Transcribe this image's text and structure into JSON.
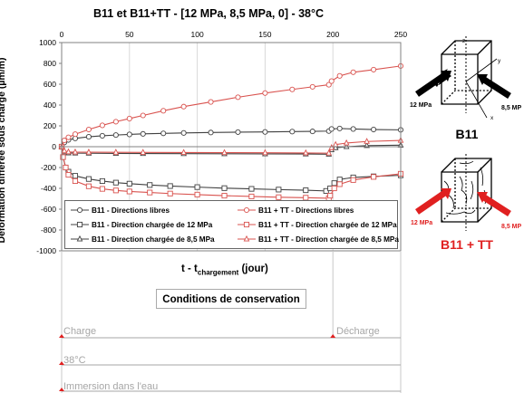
{
  "chart_data": {
    "type": "line",
    "title": "B11 et B11+TT - [12 MPa, 8,5 MPa, 0] - 38°C",
    "xlabel_main": "t - t",
    "xlabel_sub": "chargement",
    "xlabel_unit": " (jour)",
    "ylabel": "Déformation différée sous charge (µm/m)",
    "xlim": [
      0,
      250
    ],
    "ylim": [
      -1000,
      1000
    ],
    "x_ticks": [
      "0",
      "50",
      "100",
      "150",
      "200",
      "250"
    ],
    "y_ticks": [
      "1000",
      "800",
      "600",
      "400",
      "200",
      "0",
      "-200",
      "-400",
      "-600",
      "-800",
      "-1000"
    ],
    "grid": "vertical",
    "legend_position": "bottom-inside",
    "series": [
      {
        "name": "B11 - Directions libres",
        "color": "#404040",
        "marker": "circle",
        "points": [
          [
            0,
            0
          ],
          [
            2,
            40
          ],
          [
            5,
            65
          ],
          [
            10,
            80
          ],
          [
            20,
            95
          ],
          [
            30,
            105
          ],
          [
            40,
            112
          ],
          [
            50,
            118
          ],
          [
            60,
            123
          ],
          [
            75,
            128
          ],
          [
            90,
            132
          ],
          [
            110,
            136
          ],
          [
            130,
            140
          ],
          [
            150,
            142
          ],
          [
            170,
            145
          ],
          [
            185,
            147
          ],
          [
            197,
            150
          ],
          [
            199,
            170
          ],
          [
            205,
            175
          ],
          [
            215,
            170
          ],
          [
            230,
            165
          ],
          [
            250,
            162
          ]
        ]
      },
      {
        "name": "B11 - Direction chargée de 12 MPa",
        "color": "#404040",
        "marker": "square",
        "points": [
          [
            0,
            0
          ],
          [
            1,
            -100
          ],
          [
            3,
            -200
          ],
          [
            5,
            -240
          ],
          [
            10,
            -280
          ],
          [
            20,
            -310
          ],
          [
            30,
            -330
          ],
          [
            40,
            -345
          ],
          [
            50,
            -355
          ],
          [
            65,
            -368
          ],
          [
            80,
            -378
          ],
          [
            100,
            -388
          ],
          [
            120,
            -398
          ],
          [
            140,
            -405
          ],
          [
            160,
            -412
          ],
          [
            180,
            -418
          ],
          [
            195,
            -425
          ],
          [
            198,
            -400
          ],
          [
            201,
            -350
          ],
          [
            205,
            -315
          ],
          [
            215,
            -295
          ],
          [
            230,
            -285
          ],
          [
            250,
            -275
          ]
        ]
      },
      {
        "name": "B11 - Direction chargée de 8,5 MPa",
        "color": "#404040",
        "marker": "triangle",
        "points": [
          [
            0,
            0
          ],
          [
            2,
            -50
          ],
          [
            5,
            -60
          ],
          [
            10,
            -62
          ],
          [
            20,
            -63
          ],
          [
            40,
            -65
          ],
          [
            60,
            -66
          ],
          [
            90,
            -67
          ],
          [
            120,
            -68
          ],
          [
            150,
            -69
          ],
          [
            180,
            -70
          ],
          [
            197,
            -72
          ],
          [
            199,
            -30
          ],
          [
            202,
            -10
          ],
          [
            210,
            0
          ],
          [
            225,
            10
          ],
          [
            250,
            15
          ]
        ]
      },
      {
        "name": "B11 + TT - Directions libres",
        "color": "#d9534f",
        "marker": "circle",
        "points": [
          [
            0,
            0
          ],
          [
            2,
            60
          ],
          [
            5,
            90
          ],
          [
            10,
            120
          ],
          [
            20,
            165
          ],
          [
            30,
            205
          ],
          [
            40,
            240
          ],
          [
            50,
            270
          ],
          [
            60,
            300
          ],
          [
            75,
            345
          ],
          [
            90,
            385
          ],
          [
            110,
            430
          ],
          [
            130,
            475
          ],
          [
            150,
            515
          ],
          [
            170,
            550
          ],
          [
            185,
            575
          ],
          [
            197,
            595
          ],
          [
            199,
            630
          ],
          [
            205,
            680
          ],
          [
            215,
            715
          ],
          [
            230,
            740
          ],
          [
            250,
            775
          ]
        ]
      },
      {
        "name": "B11 + TT - Direction chargée de 12 MPa",
        "color": "#d9534f",
        "marker": "square",
        "points": [
          [
            0,
            0
          ],
          [
            1,
            -100
          ],
          [
            3,
            -200
          ],
          [
            5,
            -270
          ],
          [
            10,
            -330
          ],
          [
            20,
            -380
          ],
          [
            30,
            -405
          ],
          [
            40,
            -420
          ],
          [
            50,
            -430
          ],
          [
            65,
            -440
          ],
          [
            80,
            -450
          ],
          [
            100,
            -460
          ],
          [
            120,
            -470
          ],
          [
            140,
            -478
          ],
          [
            160,
            -485
          ],
          [
            180,
            -490
          ],
          [
            197,
            -495
          ],
          [
            198,
            -470
          ],
          [
            201,
            -400
          ],
          [
            205,
            -360
          ],
          [
            215,
            -320
          ],
          [
            230,
            -290
          ],
          [
            250,
            -260
          ]
        ]
      },
      {
        "name": "B11 + TT - Direction chargée de 8,5 MPa",
        "color": "#d9534f",
        "marker": "triangle",
        "points": [
          [
            0,
            0
          ],
          [
            2,
            -40
          ],
          [
            5,
            -50
          ],
          [
            10,
            -52
          ],
          [
            20,
            -53
          ],
          [
            40,
            -54
          ],
          [
            60,
            -55
          ],
          [
            90,
            -56
          ],
          [
            120,
            -57
          ],
          [
            150,
            -58
          ],
          [
            180,
            -60
          ],
          [
            197,
            -62
          ],
          [
            199,
            -10
          ],
          [
            202,
            20
          ],
          [
            210,
            35
          ],
          [
            225,
            50
          ],
          [
            250,
            60
          ]
        ]
      }
    ],
    "conditions": {
      "title": "Conditions de conservation",
      "rows": [
        {
          "start_label": "Charge",
          "end_label": "Décharge"
        },
        {
          "start_label": "38°C"
        },
        {
          "start_label": "Immersion dans l'eau"
        }
      ]
    }
  },
  "cubes": [
    {
      "label": "B11",
      "press_left": "12 MPa",
      "press_right": "8,5 MP",
      "color": "#000000",
      "cracked": false
    },
    {
      "label": "B11 + TT",
      "press_left": "12 MPa",
      "press_right": "8,5 MP",
      "color": "#e02020",
      "cracked": true
    }
  ],
  "axis_letters": {
    "z": "z",
    "y": "y",
    "x": "x"
  }
}
